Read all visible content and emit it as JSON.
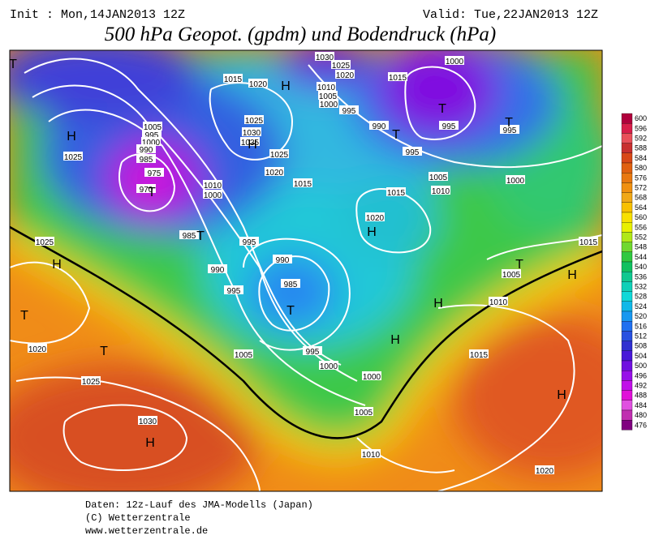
{
  "header": {
    "init": "Init : Mon,14JAN2013 12Z",
    "valid": "Valid: Tue,22JAN2013 12Z",
    "title": "500 hPa Geopot. (gpdm) und Bodendruck (hPa)"
  },
  "colorbar": {
    "levels": [
      600,
      596,
      592,
      588,
      584,
      580,
      576,
      572,
      568,
      564,
      560,
      556,
      552,
      548,
      544,
      540,
      536,
      532,
      528,
      524,
      520,
      516,
      512,
      508,
      504,
      500,
      496,
      492,
      488,
      484,
      480,
      476
    ],
    "colors": [
      "#b0003c",
      "#d81e4a",
      "#e8505a",
      "#c83030",
      "#d84818",
      "#e06010",
      "#e87810",
      "#f09010",
      "#f0a818",
      "#f8c000",
      "#f8e000",
      "#e8f000",
      "#b0e818",
      "#70d830",
      "#30c840",
      "#10c060",
      "#10c890",
      "#10d0b8",
      "#10d8d8",
      "#10b8e8",
      "#1898f0",
      "#2070f0",
      "#2850e0",
      "#3030d0",
      "#4818d8",
      "#7010e0",
      "#9810e8",
      "#c010e8",
      "#e010d8",
      "#e050e0",
      "#c030b0",
      "#800080"
    ]
  },
  "map": {
    "isobar_labels": [
      "1030",
      "1025",
      "1020",
      "1015",
      "1020",
      "1010",
      "1005",
      "1000",
      "995",
      "1000",
      "1015",
      "990",
      "995",
      "995",
      "995",
      "1005",
      "995",
      "1000",
      "990",
      "985",
      "975",
      "970",
      "1025",
      "1030",
      "1035",
      "1025",
      "1020",
      "1015",
      "1010",
      "1000",
      "1025",
      "1005",
      "1010",
      "1015",
      "1020",
      "1000",
      "985",
      "995",
      "990",
      "985",
      "990",
      "995",
      "1025",
      "1005",
      "995",
      "1000",
      "1000",
      "1005",
      "1010",
      "1010",
      "1015",
      "1020",
      "1025",
      "1030",
      "1020",
      "1005",
      "1015"
    ],
    "pressure_centers": [
      "H",
      "T",
      "T",
      "T",
      "H",
      "H",
      "T",
      "T",
      "T",
      "H",
      "T",
      "T",
      "H",
      "T",
      "H",
      "T",
      "H",
      "H",
      "H",
      "H"
    ]
  },
  "footer": [
    "Daten: 12z-Lauf des JMA-Modells (Japan)",
    "(C) Wetterzentrale",
    "www.wetterzentrale.de"
  ]
}
